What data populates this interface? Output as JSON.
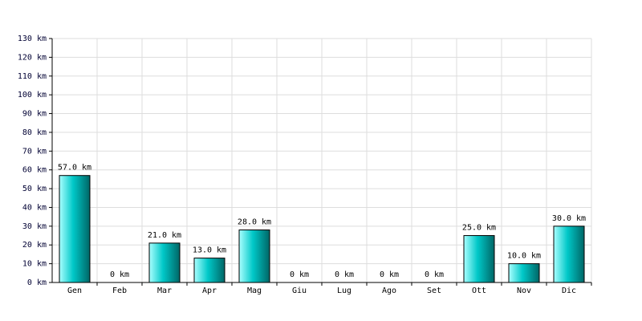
{
  "chart_data": {
    "type": "bar",
    "categories": [
      "Gen",
      "Feb",
      "Mar",
      "Apr",
      "Mag",
      "Giu",
      "Lug",
      "Ago",
      "Set",
      "Ott",
      "Nov",
      "Dic"
    ],
    "values": [
      57,
      0,
      21,
      13,
      28,
      0,
      0,
      0,
      0,
      25,
      10,
      30
    ],
    "value_labels": [
      "57.0 km",
      "0 km",
      "21.0 km",
      "13.0 km",
      "28.0 km",
      "0 km",
      "0 km",
      "0 km",
      "0 km",
      "25.0 km",
      "10.0 km",
      "30.0 km"
    ],
    "color": "#00c8c8",
    "ylim": [
      0,
      130
    ],
    "yticks": [
      {
        "value": 0,
        "label": "0 km"
      },
      {
        "value": 10,
        "label": "10 km"
      },
      {
        "value": 20,
        "label": "20 km"
      },
      {
        "value": 30,
        "label": "30 km"
      },
      {
        "value": 40,
        "label": "40 km"
      },
      {
        "value": 50,
        "label": "50 km"
      },
      {
        "value": 60,
        "label": "60 km"
      },
      {
        "value": 70,
        "label": "70 km"
      },
      {
        "value": 80,
        "label": "80 km"
      },
      {
        "value": 90,
        "label": "90 km"
      },
      {
        "value": 100,
        "label": "100 km"
      },
      {
        "value": 110,
        "label": "110 km"
      },
      {
        "value": 120,
        "label": "120 km"
      },
      {
        "value": 130,
        "label": "130 km"
      }
    ],
    "grid": true
  }
}
